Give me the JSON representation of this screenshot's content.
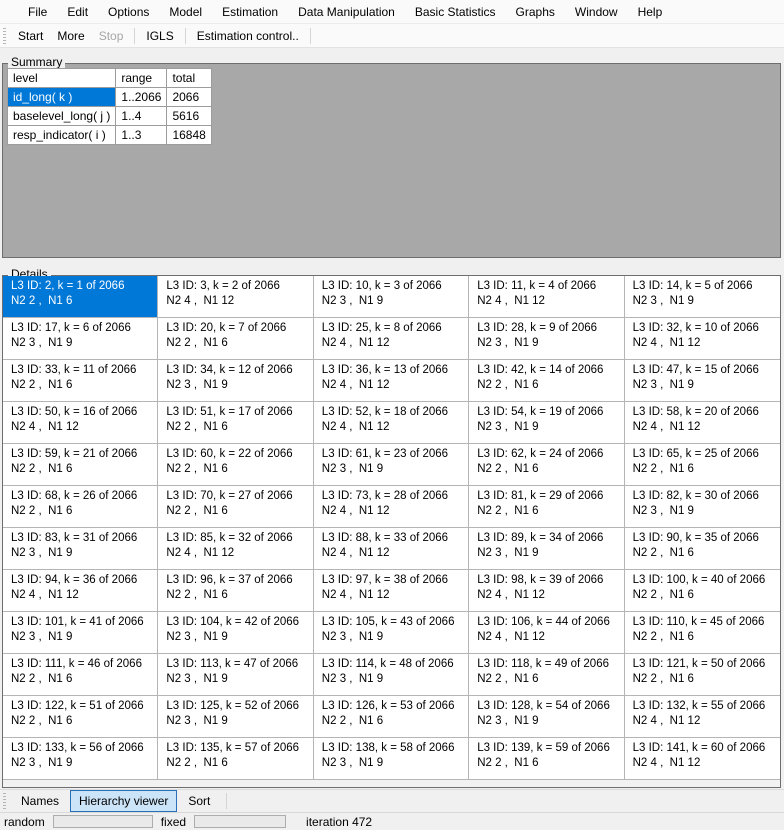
{
  "menu": {
    "items": [
      "File",
      "Edit",
      "Options",
      "Model",
      "Estimation",
      "Data Manipulation",
      "Basic Statistics",
      "Graphs",
      "Window",
      "Help"
    ]
  },
  "toolbar": {
    "items": [
      {
        "label": "Start",
        "enabled": true
      },
      {
        "label": "More",
        "enabled": true
      },
      {
        "label": "Stop",
        "enabled": false
      },
      {
        "separator": true
      },
      {
        "label": "IGLS",
        "enabled": true
      },
      {
        "separator": true
      },
      {
        "label": "Estimation control..",
        "enabled": true
      },
      {
        "separator": true
      }
    ]
  },
  "summary": {
    "box_label": "Summary",
    "table": {
      "headers": [
        "level",
        "range",
        "total"
      ],
      "rows": [
        {
          "level": "id_long( k )",
          "range": "1..2066",
          "total": "2066",
          "selected": true
        },
        {
          "level": "baselevel_long( j )",
          "range": "1..4",
          "total": "5616",
          "selected": false
        },
        {
          "level": "resp_indicator( i )",
          "range": "1..3",
          "total": "16848",
          "selected": false
        }
      ]
    }
  },
  "details": {
    "box_label": "Details",
    "cells": [
      {
        "line1": "L3 ID: 2, k = 1 of 2066",
        "line2": "N2 2 ,  N1 6",
        "selected": true
      },
      {
        "line1": "L3 ID: 3, k = 2 of 2066",
        "line2": "N2 4 ,  N1 12",
        "selected": false
      },
      {
        "line1": "L3 ID: 10, k = 3 of 2066",
        "line2": "N2 3 ,  N1 9",
        "selected": false
      },
      {
        "line1": "L3 ID: 11, k = 4 of 2066",
        "line2": "N2 4 ,  N1 12",
        "selected": false
      },
      {
        "line1": "L3 ID: 14, k = 5 of 2066",
        "line2": "N2 3 ,  N1 9",
        "selected": false
      },
      {
        "line1": "L3 ID: 17, k = 6 of 2066",
        "line2": "N2 3 ,  N1 9",
        "selected": false
      },
      {
        "line1": "L3 ID: 20, k = 7 of 2066",
        "line2": "N2 2 ,  N1 6",
        "selected": false
      },
      {
        "line1": "L3 ID: 25, k = 8 of 2066",
        "line2": "N2 4 ,  N1 12",
        "selected": false
      },
      {
        "line1": "L3 ID: 28, k = 9 of 2066",
        "line2": "N2 3 ,  N1 9",
        "selected": false
      },
      {
        "line1": "L3 ID: 32, k = 10 of 2066",
        "line2": "N2 4 ,  N1 12",
        "selected": false
      },
      {
        "line1": "L3 ID: 33, k = 11 of 2066",
        "line2": "N2 2 ,  N1 6",
        "selected": false
      },
      {
        "line1": "L3 ID: 34, k = 12 of 2066",
        "line2": "N2 3 ,  N1 9",
        "selected": false
      },
      {
        "line1": "L3 ID: 36, k = 13 of 2066",
        "line2": "N2 4 ,  N1 12",
        "selected": false
      },
      {
        "line1": "L3 ID: 42, k = 14 of 2066",
        "line2": "N2 2 ,  N1 6",
        "selected": false
      },
      {
        "line1": "L3 ID: 47, k = 15 of 2066",
        "line2": "N2 3 ,  N1 9",
        "selected": false
      },
      {
        "line1": "L3 ID: 50, k = 16 of 2066",
        "line2": "N2 4 ,  N1 12",
        "selected": false
      },
      {
        "line1": "L3 ID: 51, k = 17 of 2066",
        "line2": "N2 2 ,  N1 6",
        "selected": false
      },
      {
        "line1": "L3 ID: 52, k = 18 of 2066",
        "line2": "N2 4 ,  N1 12",
        "selected": false
      },
      {
        "line1": "L3 ID: 54, k = 19 of 2066",
        "line2": "N2 3 ,  N1 9",
        "selected": false
      },
      {
        "line1": "L3 ID: 58, k = 20 of 2066",
        "line2": "N2 4 ,  N1 12",
        "selected": false
      },
      {
        "line1": "L3 ID: 59, k = 21 of 2066",
        "line2": "N2 2 ,  N1 6",
        "selected": false
      },
      {
        "line1": "L3 ID: 60, k = 22 of 2066",
        "line2": "N2 2 ,  N1 6",
        "selected": false
      },
      {
        "line1": "L3 ID: 61, k = 23 of 2066",
        "line2": "N2 3 ,  N1 9",
        "selected": false
      },
      {
        "line1": "L3 ID: 62, k = 24 of 2066",
        "line2": "N2 2 ,  N1 6",
        "selected": false
      },
      {
        "line1": "L3 ID: 65, k = 25 of 2066",
        "line2": "N2 2 ,  N1 6",
        "selected": false
      },
      {
        "line1": "L3 ID: 68, k = 26 of 2066",
        "line2": "N2 2 ,  N1 6",
        "selected": false
      },
      {
        "line1": "L3 ID: 70, k = 27 of 2066",
        "line2": "N2 2 ,  N1 6",
        "selected": false
      },
      {
        "line1": "L3 ID: 73, k = 28 of 2066",
        "line2": "N2 4 ,  N1 12",
        "selected": false
      },
      {
        "line1": "L3 ID: 81, k = 29 of 2066",
        "line2": "N2 2 ,  N1 6",
        "selected": false
      },
      {
        "line1": "L3 ID: 82, k = 30 of 2066",
        "line2": "N2 3 ,  N1 9",
        "selected": false
      },
      {
        "line1": "L3 ID: 83, k = 31 of 2066",
        "line2": "N2 3 ,  N1 9",
        "selected": false
      },
      {
        "line1": "L3 ID: 85, k = 32 of 2066",
        "line2": "N2 4 ,  N1 12",
        "selected": false
      },
      {
        "line1": "L3 ID: 88, k = 33 of 2066",
        "line2": "N2 4 ,  N1 12",
        "selected": false
      },
      {
        "line1": "L3 ID: 89, k = 34 of 2066",
        "line2": "N2 3 ,  N1 9",
        "selected": false
      },
      {
        "line1": "L3 ID: 90, k = 35 of 2066",
        "line2": "N2 2 ,  N1 6",
        "selected": false
      },
      {
        "line1": "L3 ID: 94, k = 36 of 2066",
        "line2": "N2 4 ,  N1 12",
        "selected": false
      },
      {
        "line1": "L3 ID: 96, k = 37 of 2066",
        "line2": "N2 2 ,  N1 6",
        "selected": false
      },
      {
        "line1": "L3 ID: 97, k = 38 of 2066",
        "line2": "N2 4 ,  N1 12",
        "selected": false
      },
      {
        "line1": "L3 ID: 98, k = 39 of 2066",
        "line2": "N2 4 ,  N1 12",
        "selected": false
      },
      {
        "line1": "L3 ID: 100, k = 40 of 2066",
        "line2": "N2 2 ,  N1 6",
        "selected": false
      },
      {
        "line1": "L3 ID: 101, k = 41 of 2066",
        "line2": "N2 3 ,  N1 9",
        "selected": false
      },
      {
        "line1": "L3 ID: 104, k = 42 of 2066",
        "line2": "N2 3 ,  N1 9",
        "selected": false
      },
      {
        "line1": "L3 ID: 105, k = 43 of 2066",
        "line2": "N2 3 ,  N1 9",
        "selected": false
      },
      {
        "line1": "L3 ID: 106, k = 44 of 2066",
        "line2": "N2 4 ,  N1 12",
        "selected": false
      },
      {
        "line1": "L3 ID: 110, k = 45 of 2066",
        "line2": "N2 2 ,  N1 6",
        "selected": false
      },
      {
        "line1": "L3 ID: 111, k = 46 of 2066",
        "line2": "N2 2 ,  N1 6",
        "selected": false
      },
      {
        "line1": "L3 ID: 113, k = 47 of 2066",
        "line2": "N2 3 ,  N1 9",
        "selected": false
      },
      {
        "line1": "L3 ID: 114, k = 48 of 2066",
        "line2": "N2 3 ,  N1 9",
        "selected": false
      },
      {
        "line1": "L3 ID: 118, k = 49 of 2066",
        "line2": "N2 2 ,  N1 6",
        "selected": false
      },
      {
        "line1": "L3 ID: 121, k = 50 of 2066",
        "line2": "N2 2 ,  N1 6",
        "selected": false
      },
      {
        "line1": "L3 ID: 122, k = 51 of 2066",
        "line2": "N2 2 ,  N1 6",
        "selected": false
      },
      {
        "line1": "L3 ID: 125, k = 52 of 2066",
        "line2": "N2 3 ,  N1 9",
        "selected": false
      },
      {
        "line1": "L3 ID: 126, k = 53 of 2066",
        "line2": "N2 2 ,  N1 6",
        "selected": false
      },
      {
        "line1": "L3 ID: 128, k = 54 of 2066",
        "line2": "N2 3 ,  N1 9",
        "selected": false
      },
      {
        "line1": "L3 ID: 132, k = 55 of 2066",
        "line2": "N2 4 ,  N1 12",
        "selected": false
      },
      {
        "line1": "L3 ID: 133, k = 56 of 2066",
        "line2": "N2 3 ,  N1 9",
        "selected": false
      },
      {
        "line1": "L3 ID: 135, k = 57 of 2066",
        "line2": "N2 2 ,  N1 6",
        "selected": false
      },
      {
        "line1": "L3 ID: 138, k = 58 of 2066",
        "line2": "N2 3 ,  N1 9",
        "selected": false
      },
      {
        "line1": "L3 ID: 139, k = 59 of 2066",
        "line2": "N2 2 ,  N1 6",
        "selected": false
      },
      {
        "line1": "L3 ID: 141, k = 60 of 2066",
        "line2": "N2 4 ,  N1 12",
        "selected": false
      }
    ]
  },
  "tabs": {
    "items": [
      {
        "label": "Names",
        "active": false
      },
      {
        "label": "Hierarchy viewer",
        "active": true
      },
      {
        "label": "Sort",
        "active": false
      }
    ]
  },
  "statusbar": {
    "random_label": "random",
    "fixed_label": "fixed",
    "iteration_label": "iteration 472"
  },
  "colors": {
    "selection": "#0078d7",
    "selection_text": "#ffffff",
    "summary_bg": "#a8a8a8",
    "tab_active_bg": "#cce4f7",
    "tab_active_border": "#2a70b8"
  }
}
